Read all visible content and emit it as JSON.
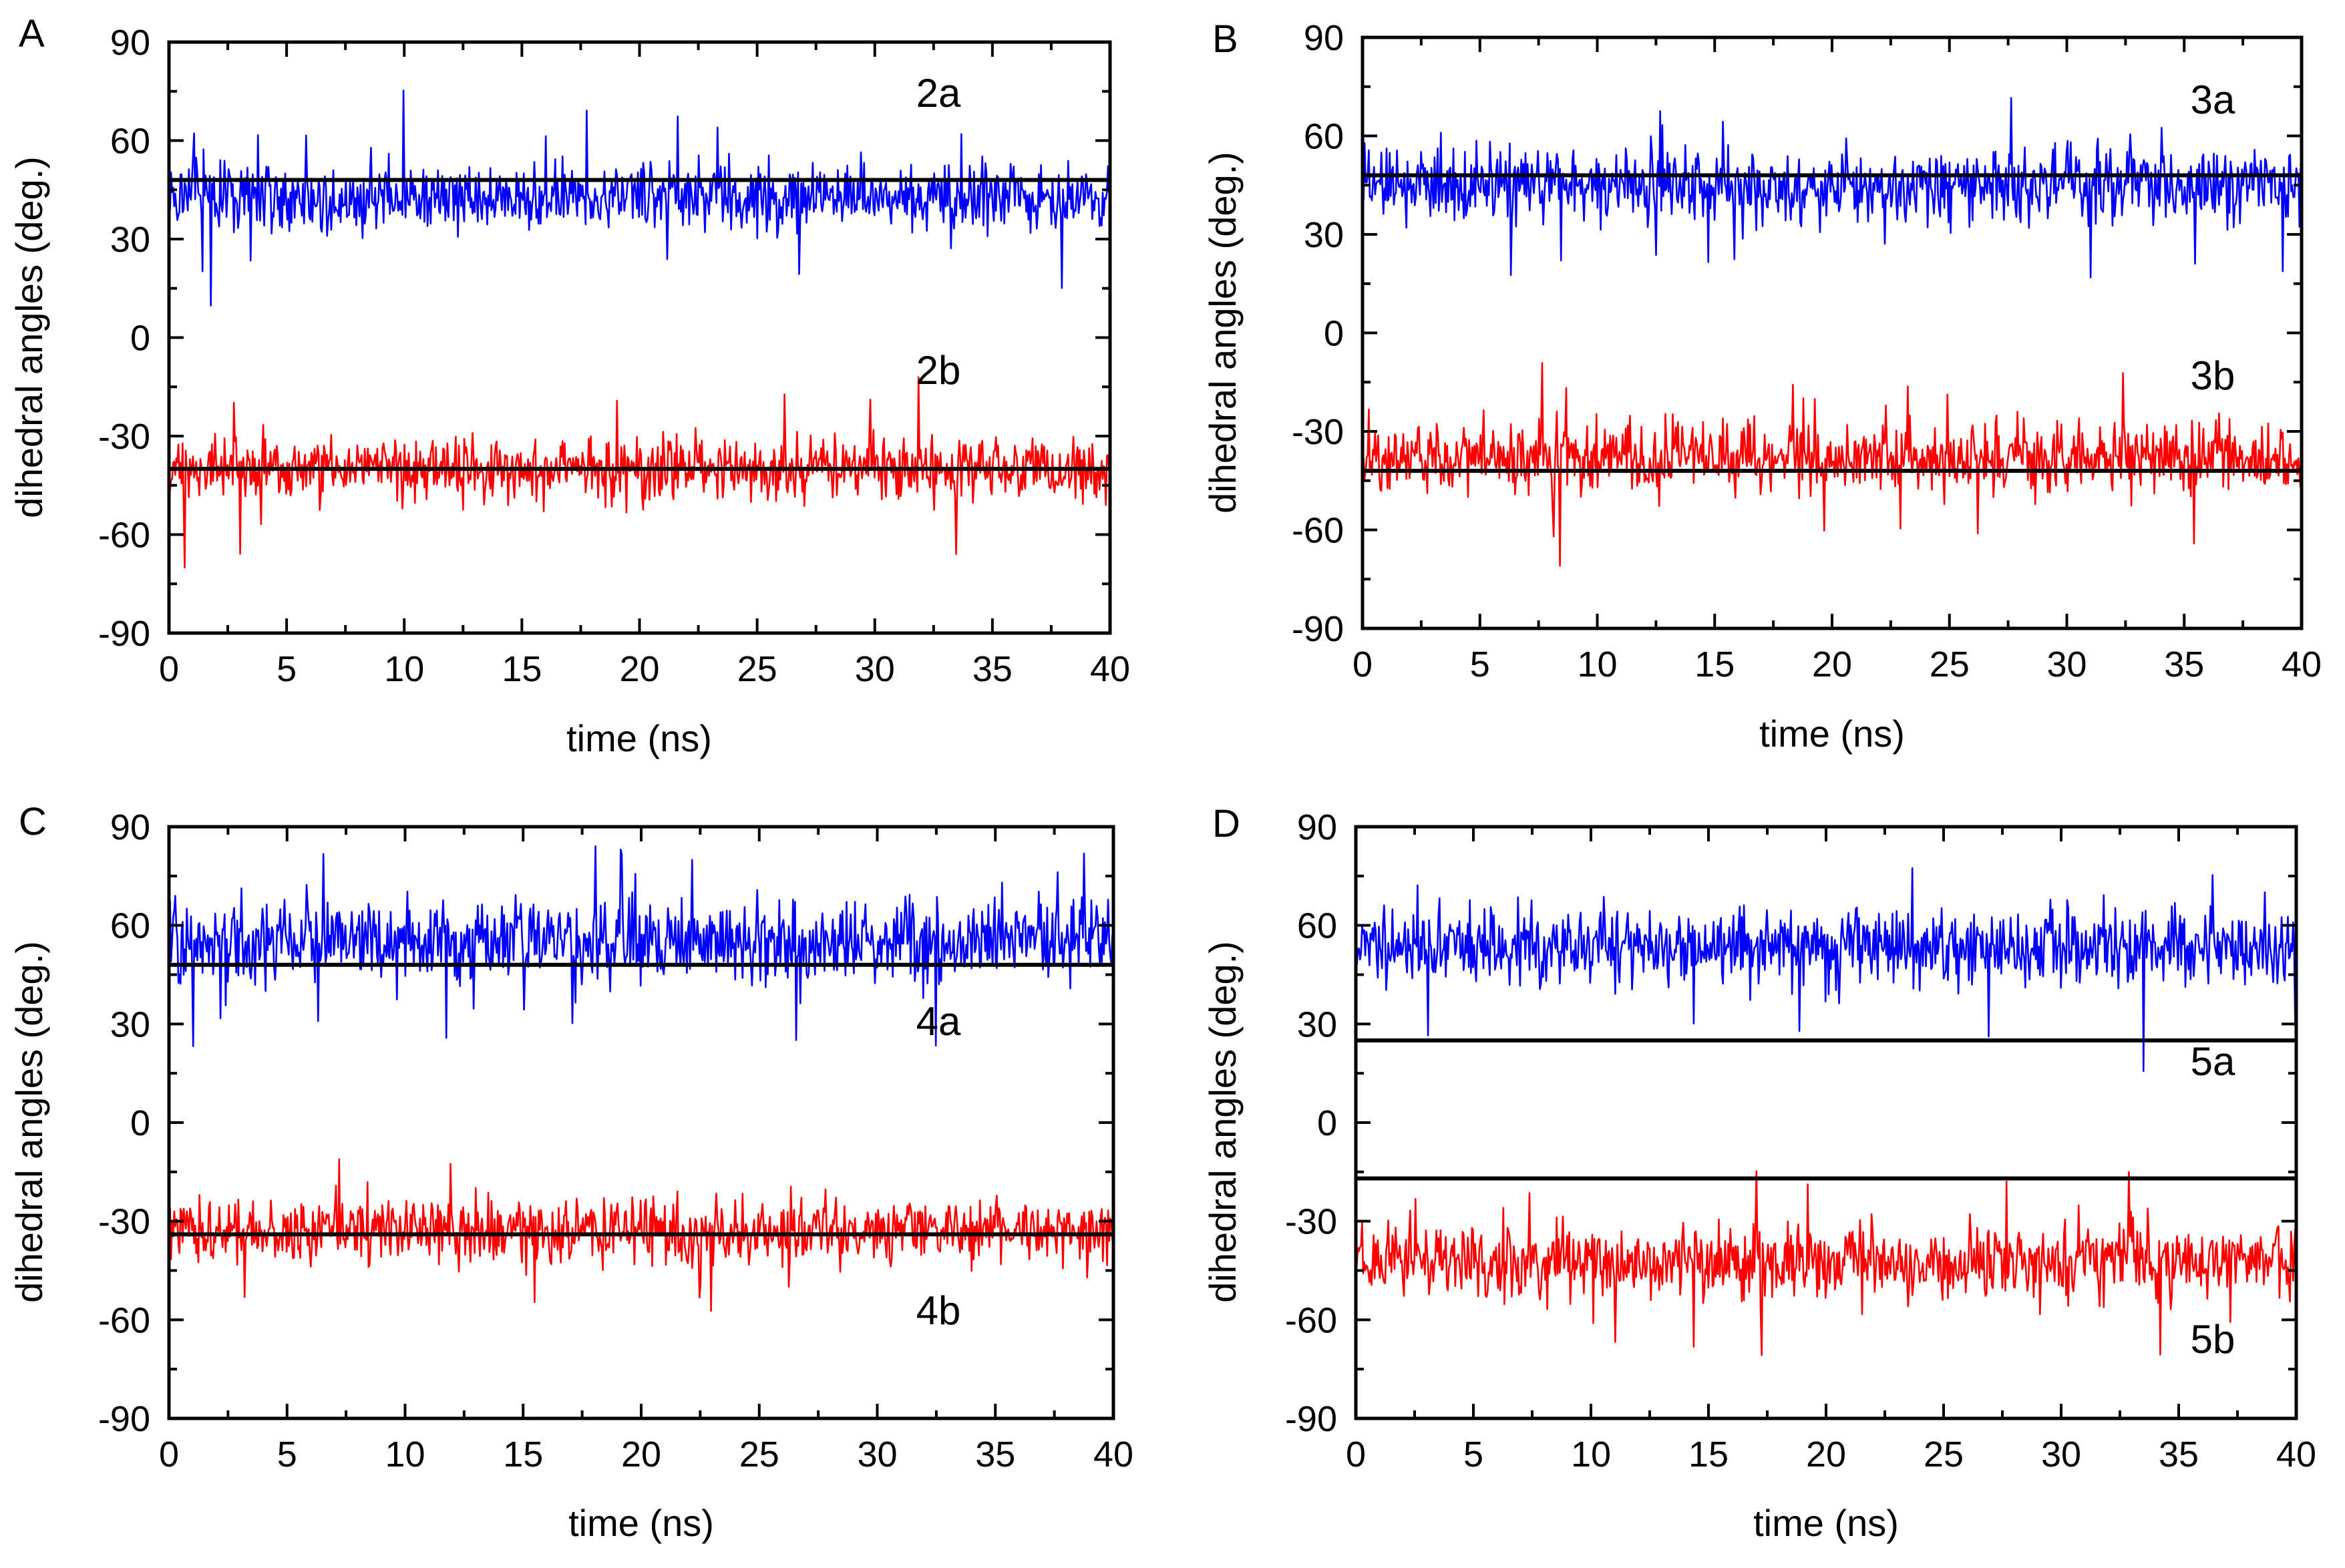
{
  "chart_data": [
    {
      "panel": "A",
      "type": "line",
      "xlabel": "time (ns)",
      "ylabel": "dihedral angles (deg.)",
      "xlim": [
        0,
        40
      ],
      "ylim": [
        -90,
        90
      ],
      "xticks": [
        0,
        5,
        10,
        15,
        20,
        25,
        30,
        35,
        40
      ],
      "yticks": [
        90,
        60,
        30,
        0,
        -30,
        -60,
        -90
      ],
      "series": [
        {
          "name": "2a",
          "color": "#0000ff",
          "mean": 43,
          "amplitude": 24,
          "reference": 48
        },
        {
          "name": "2b",
          "color": "#ff0000",
          "mean": -40,
          "amplitude": 21,
          "reference": -40
        }
      ]
    },
    {
      "panel": "B",
      "type": "line",
      "xlabel": "time (ns)",
      "ylabel": "dihedral angles (deg.)",
      "xlim": [
        0,
        40
      ],
      "ylim": [
        -90,
        90
      ],
      "xticks": [
        0,
        5,
        10,
        15,
        20,
        25,
        30,
        35,
        40
      ],
      "yticks": [
        90,
        60,
        30,
        0,
        -30,
        -60,
        -90
      ],
      "series": [
        {
          "name": "3a",
          "color": "#0000ff",
          "mean": 45,
          "amplitude": 25,
          "reference": 48
        },
        {
          "name": "3b",
          "color": "#ff0000",
          "mean": -38,
          "amplitude": 24,
          "reference": -42
        }
      ]
    },
    {
      "panel": "C",
      "type": "line",
      "xlabel": "time (ns)",
      "ylabel": "dihedral angles (deg.)",
      "xlim": [
        0,
        40
      ],
      "ylim": [
        -90,
        90
      ],
      "xticks": [
        0,
        5,
        10,
        15,
        20,
        25,
        30,
        35,
        40
      ],
      "yticks": [
        90,
        60,
        30,
        0,
        -30,
        -60,
        -90
      ],
      "series": [
        {
          "name": "4a",
          "color": "#0000ff",
          "mean": 55,
          "amplitude": 28,
          "reference": 48
        },
        {
          "name": "4b",
          "color": "#ff0000",
          "mean": -33,
          "amplitude": 23,
          "reference": -34
        }
      ]
    },
    {
      "panel": "D",
      "type": "line",
      "xlabel": "time (ns)",
      "ylabel": "dihedral angles (deg.)",
      "xlim": [
        0,
        40
      ],
      "ylim": [
        -90,
        90
      ],
      "xticks": [
        0,
        5,
        10,
        15,
        20,
        25,
        30,
        35,
        40
      ],
      "yticks": [
        90,
        60,
        30,
        0,
        -30,
        -60,
        -90
      ],
      "series": [
        {
          "name": "5a",
          "color": "#0000ff",
          "mean": 53,
          "amplitude": 26,
          "reference": 25
        },
        {
          "name": "5b",
          "color": "#ff0000",
          "mean": -42,
          "amplitude": 26,
          "reference": -17
        }
      ]
    }
  ]
}
